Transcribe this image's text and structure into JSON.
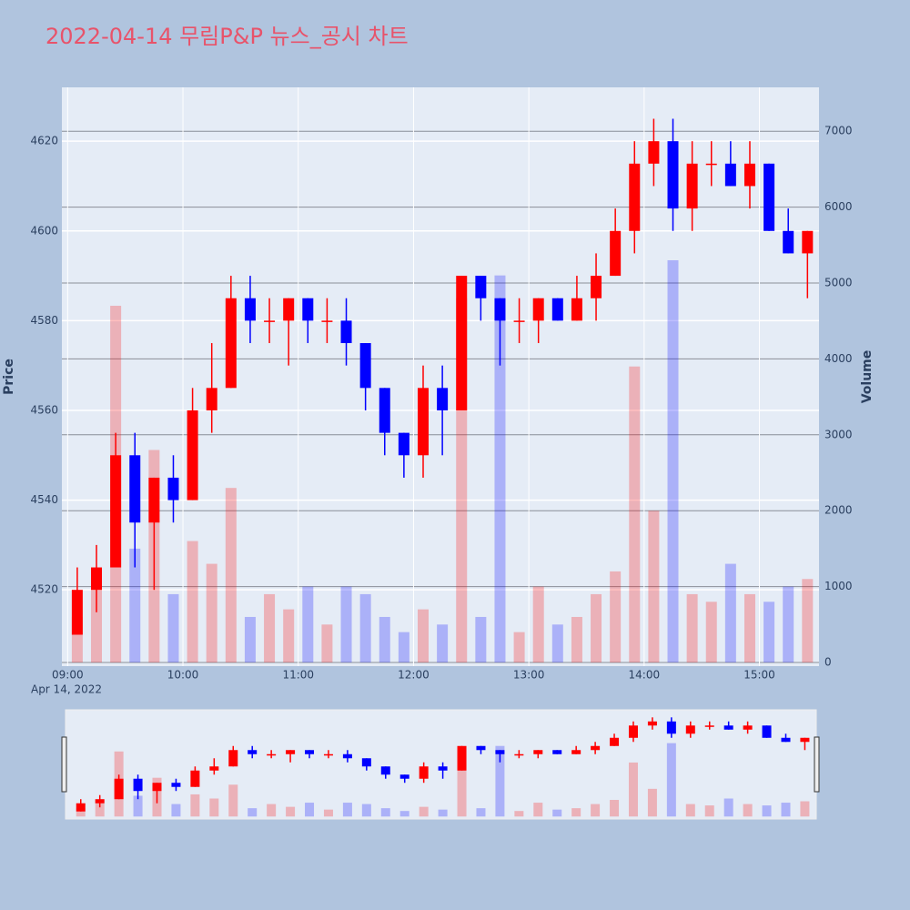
{
  "chart_data": {
    "type": "candlestick",
    "title": "2022-04-14 무림P&P 뉴스_공시 차트",
    "ylabel": "Price",
    "y2label": "Volume",
    "x": [
      "2022-04-14 09:00",
      "2022-04-14 09:10",
      "2022-04-14 09:20",
      "2022-04-14 09:30",
      "2022-04-14 09:40",
      "2022-04-14 09:50",
      "2022-04-14 10:00",
      "2022-04-14 10:10",
      "2022-04-14 10:20",
      "2022-04-14 10:30",
      "2022-04-14 10:40",
      "2022-04-14 10:50",
      "2022-04-14 11:00",
      "2022-04-14 11:10",
      "2022-04-14 11:20",
      "2022-04-14 11:30",
      "2022-04-14 11:40",
      "2022-04-14 11:50",
      "2022-04-14 12:00",
      "2022-04-14 12:10",
      "2022-04-14 12:20",
      "2022-04-14 12:30",
      "2022-04-14 12:40",
      "2022-04-14 12:50",
      "2022-04-14 13:00",
      "2022-04-14 13:10",
      "2022-04-14 13:20",
      "2022-04-14 13:30",
      "2022-04-14 13:40",
      "2022-04-14 13:50",
      "2022-04-14 14:00",
      "2022-04-14 14:10",
      "2022-04-14 14:20",
      "2022-04-14 14:30",
      "2022-04-14 14:40",
      "2022-04-14 14:50",
      "2022-04-14 15:00",
      "2022-04-14 15:10",
      "2022-04-14 15:20"
    ],
    "open": [
      4510,
      4520,
      4525,
      4550,
      4535,
      4545,
      4540,
      4560,
      4565,
      4585,
      4580,
      4580,
      4585,
      4580,
      4580,
      4575,
      4565,
      4555,
      4550,
      4565,
      4560,
      4590,
      4585,
      4580,
      4580,
      4585,
      4580,
      4585,
      4590,
      4600,
      4615,
      4620,
      4605,
      4615,
      4615,
      4610,
      4615,
      4600,
      4595
    ],
    "high": [
      4525,
      4530,
      4555,
      4555,
      4545,
      4550,
      4565,
      4575,
      4590,
      4590,
      4585,
      4585,
      4585,
      4585,
      4585,
      4575,
      4565,
      4555,
      4570,
      4570,
      4590,
      4590,
      4585,
      4585,
      4585,
      4585,
      4590,
      4595,
      4605,
      4620,
      4625,
      4625,
      4620,
      4620,
      4620,
      4620,
      4615,
      4605,
      4600
    ],
    "low": [
      4510,
      4515,
      4525,
      4525,
      4520,
      4535,
      4540,
      4555,
      4565,
      4575,
      4575,
      4570,
      4575,
      4575,
      4570,
      4560,
      4550,
      4545,
      4545,
      4550,
      4560,
      4580,
      4570,
      4575,
      4575,
      4580,
      4580,
      4580,
      4590,
      4595,
      4610,
      4600,
      4600,
      4610,
      4610,
      4605,
      4600,
      4595,
      4585
    ],
    "close": [
      4520,
      4525,
      4550,
      4535,
      4545,
      4540,
      4560,
      4565,
      4585,
      4580,
      4580,
      4585,
      4580,
      4580,
      4575,
      4565,
      4555,
      4550,
      4565,
      4560,
      4590,
      4585,
      4580,
      4580,
      4585,
      4580,
      4585,
      4590,
      4600,
      4615,
      4620,
      4605,
      4615,
      4615,
      4610,
      4615,
      4600,
      4595,
      4600
    ],
    "volume": [
      600,
      1200,
      4700,
      1500,
      2800,
      900,
      1600,
      1300,
      2300,
      600,
      900,
      700,
      1000,
      500,
      1000,
      900,
      600,
      400,
      700,
      500,
      4800,
      600,
      5100,
      400,
      1000,
      500,
      600,
      900,
      1200,
      3900,
      2000,
      5300,
      900,
      800,
      1300,
      900,
      800,
      1000,
      1100
    ],
    "increasing_color": "#ff0000",
    "decreasing_color": "#0000ff",
    "ylim": [
      4503,
      4632
    ],
    "yticks": [
      4520,
      4540,
      4560,
      4580,
      4600,
      4620
    ],
    "y2lim": [
      -48,
      7578
    ],
    "y2ticks": [
      0,
      1000,
      2000,
      3000,
      4000,
      5000,
      6000,
      7000
    ],
    "xlim": [
      "2022-04-14 08:57",
      "2022-04-14 15:31"
    ],
    "xticks": [
      {
        "value": "2022-04-14 09:00",
        "label": "09:00"
      },
      {
        "value": "2022-04-14 10:00",
        "label": "10:00"
      },
      {
        "value": "2022-04-14 11:00",
        "label": "11:00"
      },
      {
        "value": "2022-04-14 12:00",
        "label": "12:00"
      },
      {
        "value": "2022-04-14 13:00",
        "label": "13:00"
      },
      {
        "value": "2022-04-14 14:00",
        "label": "14:00"
      },
      {
        "value": "2022-04-14 15:00",
        "label": "15:00"
      }
    ],
    "x_date_label": "Apr 14, 2022",
    "rangeslider": true
  }
}
